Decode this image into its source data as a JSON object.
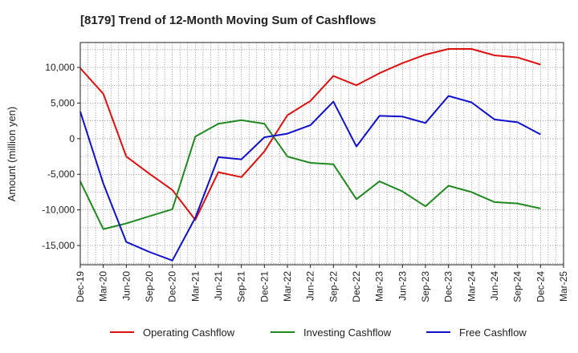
{
  "chart_data": {
    "type": "line",
    "title": "[8179]  Trend of 12-Month Moving Sum of Cashflows",
    "xlabel": "",
    "ylabel": "Amount (million yen)",
    "ylim": [
      -17700,
      13500
    ],
    "yticks": [
      10000,
      5000,
      0,
      -5000,
      -10000,
      -15000
    ],
    "ytick_labels": [
      "10,000",
      "5,000",
      "0",
      "-5,000",
      "-10,000",
      "-15,000"
    ],
    "categories": [
      "Dec-19",
      "Mar-20",
      "Jun-20",
      "Sep-20",
      "Dec-20",
      "Mar-21",
      "Jun-21",
      "Sep-21",
      "Dec-21",
      "Mar-22",
      "Jun-22",
      "Sep-22",
      "Dec-22",
      "Mar-23",
      "Jun-23",
      "Sep-23",
      "Dec-23",
      "Mar-24",
      "Jun-24",
      "Sep-24",
      "Dec-24",
      "Mar-25"
    ],
    "grid": true,
    "legend_position": "bottom",
    "series": [
      {
        "name": "Operating Cashflow",
        "color": "#dd1111",
        "values": [
          9900,
          6300,
          -2500,
          -4900,
          -7200,
          -11400,
          -4700,
          -5400,
          -1800,
          3300,
          5300,
          8800,
          7500,
          9200,
          10600,
          11800,
          12600,
          12600,
          11700,
          11400,
          10400,
          null
        ]
      },
      {
        "name": "Investing Cashflow",
        "color": "#228822",
        "values": [
          -6000,
          -12700,
          -11900,
          -10900,
          -9900,
          300,
          2100,
          2600,
          2100,
          -2500,
          -3400,
          -3600,
          -8500,
          -6000,
          -7400,
          -9500,
          -6600,
          -7500,
          -8900,
          -9100,
          -9800,
          null
        ]
      },
      {
        "name": "Free Cashflow",
        "color": "#1111cc",
        "values": [
          3800,
          -6300,
          -14500,
          -15900,
          -17100,
          -11100,
          -2600,
          -2900,
          200,
          700,
          1900,
          5200,
          -1100,
          3200,
          3100,
          2200,
          6000,
          5100,
          2700,
          2300,
          600,
          null
        ]
      }
    ]
  }
}
